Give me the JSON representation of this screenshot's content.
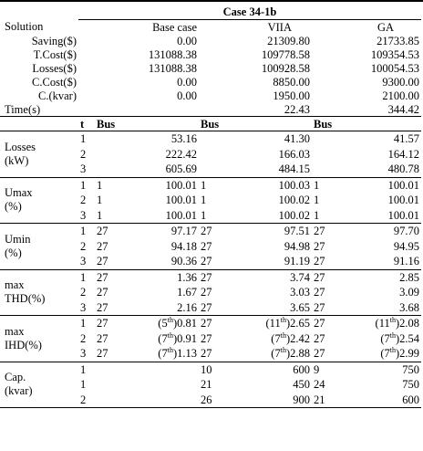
{
  "table": {
    "title": "Case 34-1b",
    "columns": [
      "Solution",
      "Base case",
      "VIIA",
      "GA"
    ],
    "summary_rows": [
      [
        "Saving($)",
        "0.00",
        "21309.80",
        "21733.85"
      ],
      [
        "T.Cost($)",
        "131088.38",
        "109778.58",
        "109354.53"
      ],
      [
        "Losses($)",
        "131088.38",
        "100928.58",
        "100054.53"
      ],
      [
        "C.Cost($)",
        "0.00",
        "8850.00",
        "9300.00"
      ],
      [
        "C.(kvar)",
        "0.00",
        "1950.00",
        "2100.00"
      ],
      [
        "Time(s)",
        null,
        "22.43",
        "344.42"
      ]
    ],
    "detail_header": [
      "t",
      "Bus",
      "Bus",
      "Bus"
    ],
    "groups": [
      {
        "label": [
          "Losses",
          "(kW)"
        ],
        "rows": [
          {
            "t": 1,
            "cells": [
              [
                null,
                "53.16"
              ],
              [
                null,
                "41.30"
              ],
              [
                null,
                "41.57"
              ]
            ]
          },
          {
            "t": 2,
            "cells": [
              [
                null,
                "222.42"
              ],
              [
                null,
                "166.03"
              ],
              [
                null,
                "164.12"
              ]
            ]
          },
          {
            "t": 3,
            "cells": [
              [
                null,
                "605.69"
              ],
              [
                null,
                "484.15"
              ],
              [
                null,
                "480.78"
              ]
            ]
          }
        ]
      },
      {
        "label": [
          "Umax",
          "(%)"
        ],
        "rows": [
          {
            "t": 1,
            "cells": [
              [
                1,
                "100.01"
              ],
              [
                1,
                "100.03"
              ],
              [
                1,
                "100.01"
              ]
            ]
          },
          {
            "t": 2,
            "cells": [
              [
                1,
                "100.01"
              ],
              [
                1,
                "100.02"
              ],
              [
                1,
                "100.01"
              ]
            ]
          },
          {
            "t": 3,
            "cells": [
              [
                1,
                "100.01"
              ],
              [
                1,
                "100.02"
              ],
              [
                1,
                "100.01"
              ]
            ]
          }
        ]
      },
      {
        "label": [
          "Umin",
          "(%)"
        ],
        "rows": [
          {
            "t": 1,
            "cells": [
              [
                27,
                "97.17"
              ],
              [
                27,
                "97.51"
              ],
              [
                27,
                "97.70"
              ]
            ]
          },
          {
            "t": 2,
            "cells": [
              [
                27,
                "94.18"
              ],
              [
                27,
                "94.98"
              ],
              [
                27,
                "94.95"
              ]
            ]
          },
          {
            "t": 3,
            "cells": [
              [
                27,
                "90.36"
              ],
              [
                27,
                "91.19"
              ],
              [
                27,
                "91.16"
              ]
            ]
          }
        ]
      },
      {
        "label": [
          "max",
          "THD(%)"
        ],
        "rows": [
          {
            "t": 1,
            "cells": [
              [
                27,
                "1.36"
              ],
              [
                27,
                "3.74"
              ],
              [
                27,
                "2.85"
              ]
            ]
          },
          {
            "t": 2,
            "cells": [
              [
                27,
                "1.67"
              ],
              [
                27,
                "3.03"
              ],
              [
                27,
                "3.09"
              ]
            ]
          },
          {
            "t": 3,
            "cells": [
              [
                27,
                "2.16"
              ],
              [
                27,
                "3.65"
              ],
              [
                27,
                "3.68"
              ]
            ]
          }
        ]
      },
      {
        "label": [
          "max",
          "IHD(%)"
        ],
        "rows": [
          {
            "t": 1,
            "cells": [
              [
                27,
                {
                  "pre": "(5",
                  "sup": "th",
                  "post": ")0.81"
                }
              ],
              [
                27,
                {
                  "pre": "(11",
                  "sup": "th",
                  "post": ")2.65"
                }
              ],
              [
                27,
                {
                  "pre": "(11",
                  "sup": "th",
                  "post": ")2.08"
                }
              ]
            ]
          },
          {
            "t": 2,
            "cells": [
              [
                27,
                {
                  "pre": "(7",
                  "sup": "th",
                  "post": ")0.91"
                }
              ],
              [
                27,
                {
                  "pre": "(7",
                  "sup": "th",
                  "post": ")2.42"
                }
              ],
              [
                27,
                {
                  "pre": "(7",
                  "sup": "th",
                  "post": ")2.54"
                }
              ]
            ]
          },
          {
            "t": 3,
            "cells": [
              [
                27,
                {
                  "pre": "(7",
                  "sup": "th",
                  "post": ")1.13"
                }
              ],
              [
                27,
                {
                  "pre": "(7",
                  "sup": "th",
                  "post": ")2.88"
                }
              ],
              [
                27,
                {
                  "pre": "(7",
                  "sup": "th",
                  "post": ")2.99"
                }
              ]
            ]
          }
        ]
      },
      {
        "label": [
          "Cap.",
          "(kvar)"
        ],
        "rows": [
          {
            "t": 1,
            "cells": [
              [
                null,
                null
              ],
              [
                10,
                "600"
              ],
              [
                9,
                "750"
              ]
            ]
          },
          {
            "t": 1,
            "cells": [
              [
                null,
                null
              ],
              [
                21,
                "450"
              ],
              [
                24,
                "750"
              ]
            ]
          },
          {
            "t": 2,
            "cells": [
              [
                null,
                null
              ],
              [
                26,
                "900"
              ],
              [
                21,
                "600"
              ]
            ]
          }
        ]
      }
    ]
  }
}
